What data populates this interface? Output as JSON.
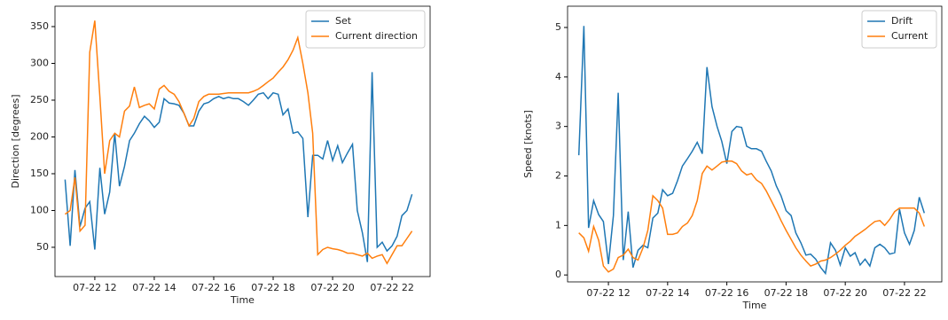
{
  "chart_data": [
    {
      "type": "line",
      "xlabel": "Time",
      "ylabel": "Direction [degrees]",
      "x": [
        11,
        11.17,
        11.33,
        11.5,
        11.67,
        11.83,
        12,
        12.17,
        12.33,
        12.5,
        12.67,
        12.83,
        13,
        13.17,
        13.33,
        13.5,
        13.67,
        13.83,
        14,
        14.17,
        14.33,
        14.5,
        14.67,
        14.83,
        15,
        15.17,
        15.33,
        15.5,
        15.67,
        15.83,
        16,
        16.17,
        16.33,
        16.5,
        16.67,
        16.83,
        17,
        17.17,
        17.33,
        17.5,
        17.67,
        17.83,
        18,
        18.17,
        18.33,
        18.5,
        18.67,
        18.83,
        19,
        19.17,
        19.33,
        19.5,
        19.67,
        19.83,
        20,
        20.17,
        20.33,
        20.5,
        20.67,
        20.83,
        21,
        21.17,
        21.33,
        21.5,
        21.67,
        21.83,
        22,
        22.17,
        22.33,
        22.5,
        22.67
      ],
      "series": [
        {
          "name": "Set",
          "color": "#1f77b4",
          "values": [
            142,
            52,
            155,
            78,
            103,
            112,
            47,
            158,
            95,
            125,
            205,
            133,
            160,
            195,
            205,
            218,
            228,
            222,
            213,
            220,
            252,
            246,
            245,
            243,
            232,
            215,
            215,
            235,
            245,
            247,
            252,
            255,
            252,
            254,
            252,
            252,
            248,
            243,
            250,
            258,
            260,
            252,
            260,
            258,
            230,
            238,
            205,
            207,
            198,
            91,
            175,
            175,
            170,
            195,
            168,
            188,
            165,
            178,
            190,
            100,
            70,
            30,
            288,
            50,
            57,
            45,
            52,
            65,
            93,
            100,
            122
          ]
        },
        {
          "name": "Current direction",
          "color": "#ff7f0e",
          "values": [
            95,
            100,
            145,
            72,
            80,
            315,
            358,
            255,
            150,
            195,
            205,
            200,
            235,
            242,
            268,
            240,
            243,
            245,
            238,
            265,
            270,
            262,
            258,
            248,
            232,
            215,
            225,
            248,
            255,
            258,
            258,
            258,
            259,
            260,
            260,
            260,
            260,
            260,
            262,
            265,
            270,
            275,
            280,
            288,
            295,
            305,
            318,
            335,
            300,
            260,
            205,
            40,
            47,
            50,
            48,
            47,
            45,
            42,
            42,
            40,
            38,
            42,
            35,
            38,
            40,
            28,
            40,
            52,
            52,
            62,
            72
          ]
        }
      ],
      "xlim": [
        10.66,
        23.28
      ],
      "ylim": [
        10.2,
        377.7
      ],
      "xticks": [
        {
          "value": 12,
          "label": "07-22 12"
        },
        {
          "value": 14,
          "label": "07-22 14"
        },
        {
          "value": 16,
          "label": "07-22 16"
        },
        {
          "value": 18,
          "label": "07-22 18"
        },
        {
          "value": 20,
          "label": "07-22 20"
        },
        {
          "value": 22,
          "label": "07-22 22"
        }
      ],
      "yticks": [
        50,
        100,
        150,
        200,
        250,
        300,
        350
      ],
      "legend": "upper right"
    },
    {
      "type": "line",
      "xlabel": "Time",
      "ylabel": "Speed [knots]",
      "x": [
        11,
        11.17,
        11.33,
        11.5,
        11.67,
        11.83,
        12,
        12.17,
        12.33,
        12.5,
        12.67,
        12.83,
        13,
        13.17,
        13.33,
        13.5,
        13.67,
        13.83,
        14,
        14.17,
        14.33,
        14.5,
        14.67,
        14.83,
        15,
        15.17,
        15.33,
        15.5,
        15.67,
        15.83,
        16,
        16.17,
        16.33,
        16.5,
        16.67,
        16.83,
        17,
        17.17,
        17.33,
        17.5,
        17.67,
        17.83,
        18,
        18.17,
        18.33,
        18.5,
        18.67,
        18.83,
        19,
        19.17,
        19.33,
        19.5,
        19.67,
        19.83,
        20,
        20.17,
        20.33,
        20.5,
        20.67,
        20.83,
        21,
        21.17,
        21.33,
        21.5,
        21.67,
        21.83,
        22,
        22.17,
        22.33,
        22.5,
        22.67
      ],
      "series": [
        {
          "name": "Drift",
          "color": "#1f77b4",
          "values": [
            2.42,
            5.03,
            0.95,
            1.5,
            1.22,
            1.08,
            0.22,
            1.2,
            3.68,
            0.3,
            1.28,
            0.15,
            0.5,
            0.6,
            0.55,
            1.15,
            1.25,
            1.72,
            1.6,
            1.65,
            1.9,
            2.2,
            2.35,
            2.5,
            2.68,
            2.45,
            4.2,
            3.4,
            3.0,
            2.7,
            2.25,
            2.9,
            3.0,
            2.98,
            2.6,
            2.55,
            2.55,
            2.5,
            2.3,
            2.1,
            1.8,
            1.6,
            1.3,
            1.2,
            0.85,
            0.65,
            0.4,
            0.42,
            0.32,
            0.15,
            0.03,
            0.65,
            0.5,
            0.2,
            0.55,
            0.38,
            0.45,
            0.2,
            0.32,
            0.18,
            0.55,
            0.62,
            0.55,
            0.42,
            0.45,
            1.33,
            0.85,
            0.62,
            0.9,
            1.57,
            1.25
          ]
        },
        {
          "name": "Current",
          "color": "#ff7f0e",
          "values": [
            0.85,
            0.75,
            0.48,
            0.98,
            0.7,
            0.18,
            0.06,
            0.12,
            0.35,
            0.4,
            0.52,
            0.35,
            0.3,
            0.55,
            0.9,
            1.6,
            1.5,
            1.35,
            0.82,
            0.82,
            0.85,
            0.98,
            1.05,
            1.2,
            1.5,
            2.05,
            2.2,
            2.12,
            2.2,
            2.28,
            2.3,
            2.3,
            2.25,
            2.1,
            2.02,
            2.05,
            1.92,
            1.85,
            1.7,
            1.5,
            1.3,
            1.1,
            0.9,
            0.72,
            0.55,
            0.4,
            0.28,
            0.18,
            0.22,
            0.28,
            0.3,
            0.35,
            0.42,
            0.5,
            0.6,
            0.68,
            0.78,
            0.85,
            0.92,
            1.0,
            1.08,
            1.1,
            1.0,
            1.12,
            1.28,
            1.35,
            1.35,
            1.35,
            1.35,
            1.25,
            0.98
          ]
        }
      ],
      "xlim": [
        10.62,
        23.26
      ],
      "ylim": [
        -0.14,
        5.43
      ],
      "xticks": [
        {
          "value": 12,
          "label": "07-22 12"
        },
        {
          "value": 14,
          "label": "07-22 14"
        },
        {
          "value": 16,
          "label": "07-22 16"
        },
        {
          "value": 18,
          "label": "07-22 18"
        },
        {
          "value": 20,
          "label": "07-22 20"
        },
        {
          "value": 22,
          "label": "07-22 22"
        }
      ],
      "yticks": [
        0,
        1,
        2,
        3,
        4,
        5
      ],
      "legend": "upper right"
    }
  ]
}
